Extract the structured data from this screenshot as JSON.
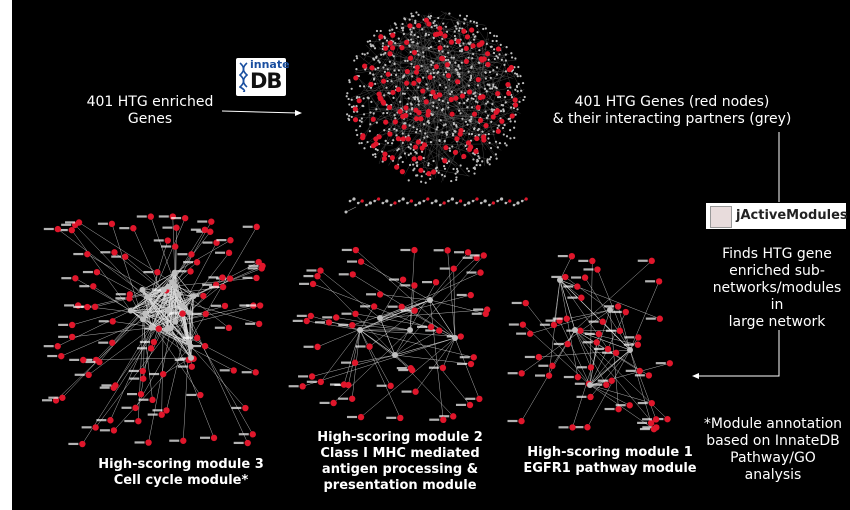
{
  "labels": {
    "input_genes": [
      "401 HTG enriched",
      "Genes"
    ],
    "network_desc": [
      "401 HTG Genes (red nodes)",
      "& their interacting partners (grey)"
    ],
    "jam_desc": [
      "Finds HTG gene",
      "enriched sub-",
      "networks/modules in",
      "large network"
    ],
    "annotation_note": [
      "*Module annotation",
      "based on InnateDB",
      "Pathway/GO analysis"
    ]
  },
  "modules": {
    "m3": [
      "High-scoring module 3",
      "Cell cycle module*"
    ],
    "m2": [
      "High-scoring module 2",
      "Class I MHC mediated",
      "antigen processing &",
      "presentation module"
    ],
    "m1": [
      "High-scoring module 1",
      "EGFR1 pathway module"
    ]
  },
  "logos": {
    "innatedb_text_top": "innate",
    "innatedb_text_bottom": "DB",
    "jactivemodules": "jActiveModules"
  },
  "colors": {
    "background": "#000000",
    "text": "#ffffff",
    "htg_node": "#e0162b",
    "partner_node": "#bfbfbf",
    "edge": "#d9d9d9"
  }
}
